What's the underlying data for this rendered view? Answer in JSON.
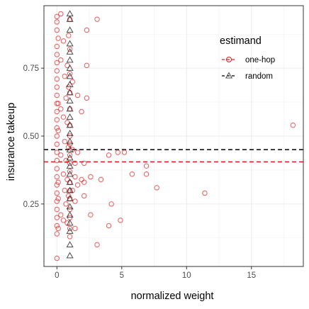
{
  "chart_data": {
    "type": "scatter",
    "xlabel": "normalized weight",
    "ylabel": "insurance takeup",
    "xlim": [
      -1.0,
      19.0
    ],
    "ylim": [
      0.02,
      0.98
    ],
    "x_ticks": [
      0,
      5,
      10,
      15
    ],
    "x_tick_labels": [
      "0",
      "5",
      "10",
      "15"
    ],
    "y_ticks": [
      0.25,
      0.5,
      0.75
    ],
    "y_tick_labels": [
      "0.25",
      "0.50",
      "0.75"
    ],
    "grid": true,
    "legend": {
      "title": "estimand",
      "position": "top-right-inside"
    },
    "reference_lines": [
      {
        "series": "one-hop",
        "y": 0.405,
        "color": "#e41a1c",
        "style": "dashed"
      },
      {
        "series": "random",
        "y": 0.45,
        "color": "#000000",
        "style": "dashed"
      }
    ],
    "series": [
      {
        "name": "one-hop",
        "marker": "circle",
        "color": "#e41a1c",
        "points": [
          [
            0.0,
            0.94
          ],
          [
            0.0,
            0.92
          ],
          [
            0.0,
            0.89
          ],
          [
            0.0,
            0.83
          ],
          [
            0.0,
            0.8
          ],
          [
            0.0,
            0.77
          ],
          [
            0.0,
            0.74
          ],
          [
            0.0,
            0.71
          ],
          [
            0.0,
            0.68
          ],
          [
            0.0,
            0.65
          ],
          [
            0.0,
            0.62
          ],
          [
            0.0,
            0.59
          ],
          [
            0.0,
            0.56
          ],
          [
            0.0,
            0.53
          ],
          [
            0.0,
            0.5
          ],
          [
            0.0,
            0.47
          ],
          [
            0.0,
            0.44
          ],
          [
            0.0,
            0.41
          ],
          [
            0.0,
            0.38
          ],
          [
            0.0,
            0.35
          ],
          [
            0.0,
            0.32
          ],
          [
            0.0,
            0.29
          ],
          [
            0.0,
            0.26
          ],
          [
            0.0,
            0.23
          ],
          [
            0.0,
            0.2
          ],
          [
            0.0,
            0.17
          ],
          [
            0.0,
            0.14
          ],
          [
            0.0,
            0.05
          ],
          [
            0.1,
            0.86
          ],
          [
            0.1,
            0.62
          ],
          [
            0.1,
            0.52
          ],
          [
            0.1,
            0.33
          ],
          [
            0.1,
            0.27
          ],
          [
            0.1,
            0.16
          ],
          [
            0.3,
            0.95
          ],
          [
            0.3,
            0.78
          ],
          [
            0.3,
            0.6
          ],
          [
            0.3,
            0.43
          ],
          [
            0.3,
            0.21
          ],
          [
            0.5,
            0.85
          ],
          [
            0.5,
            0.57
          ],
          [
            0.5,
            0.36
          ],
          [
            0.5,
            0.19
          ],
          [
            0.6,
            0.72
          ],
          [
            0.6,
            0.48
          ],
          [
            0.6,
            0.3
          ],
          [
            0.7,
            0.64
          ],
          [
            0.7,
            0.41
          ],
          [
            0.7,
            0.25
          ],
          [
            0.8,
            0.76
          ],
          [
            0.8,
            0.55
          ],
          [
            0.8,
            0.34
          ],
          [
            0.8,
            0.18
          ],
          [
            0.9,
            0.87
          ],
          [
            0.9,
            0.68
          ],
          [
            0.9,
            0.46
          ],
          [
            0.9,
            0.28
          ],
          [
            1.0,
            0.93
          ],
          [
            1.0,
            0.82
          ],
          [
            1.0,
            0.73
          ],
          [
            1.0,
            0.66
          ],
          [
            1.0,
            0.6
          ],
          [
            1.0,
            0.54
          ],
          [
            1.0,
            0.5
          ],
          [
            1.0,
            0.47
          ],
          [
            1.0,
            0.43
          ],
          [
            1.0,
            0.4
          ],
          [
            1.0,
            0.37
          ],
          [
            1.0,
            0.33
          ],
          [
            1.0,
            0.3
          ],
          [
            1.0,
            0.27
          ],
          [
            1.0,
            0.23
          ],
          [
            1.0,
            0.2
          ],
          [
            1.0,
            0.16
          ],
          [
            1.0,
            0.13
          ],
          [
            1.2,
            0.7
          ],
          [
            1.2,
            0.45
          ],
          [
            1.2,
            0.3
          ],
          [
            1.4,
            0.4
          ],
          [
            1.4,
            0.35
          ],
          [
            1.4,
            0.26
          ],
          [
            1.4,
            0.16
          ],
          [
            1.6,
            0.65
          ],
          [
            1.6,
            0.44
          ],
          [
            1.6,
            0.32
          ],
          [
            1.9,
            0.59
          ],
          [
            1.9,
            0.34
          ],
          [
            2.1,
            0.4
          ],
          [
            2.1,
            0.33
          ],
          [
            2.1,
            0.28
          ],
          [
            2.3,
            0.89
          ],
          [
            2.3,
            0.76
          ],
          [
            2.3,
            0.64
          ],
          [
            2.6,
            0.35
          ],
          [
            2.6,
            0.21
          ],
          [
            3.1,
            0.93
          ],
          [
            3.1,
            0.1
          ],
          [
            3.4,
            0.34
          ],
          [
            4.0,
            0.43
          ],
          [
            4.0,
            0.17
          ],
          [
            4.2,
            0.25
          ],
          [
            4.7,
            0.44
          ],
          [
            4.9,
            0.19
          ],
          [
            5.2,
            0.44
          ],
          [
            5.8,
            0.36
          ],
          [
            6.9,
            0.39
          ],
          [
            6.9,
            0.36
          ],
          [
            7.7,
            0.31
          ],
          [
            11.4,
            0.29
          ],
          [
            18.2,
            0.54
          ]
        ]
      },
      {
        "name": "random",
        "marker": "triangle",
        "color": "#000000",
        "points": [
          [
            1.0,
            0.95
          ],
          [
            1.0,
            0.93
          ],
          [
            1.0,
            0.89
          ],
          [
            1.0,
            0.84
          ],
          [
            1.0,
            0.81
          ],
          [
            1.0,
            0.78
          ],
          [
            1.0,
            0.75
          ],
          [
            1.0,
            0.72
          ],
          [
            1.0,
            0.69
          ],
          [
            1.0,
            0.66
          ],
          [
            1.0,
            0.63
          ],
          [
            1.0,
            0.6
          ],
          [
            1.0,
            0.57
          ],
          [
            1.0,
            0.54
          ],
          [
            1.0,
            0.51
          ],
          [
            1.0,
            0.48
          ],
          [
            1.0,
            0.45
          ],
          [
            1.0,
            0.42
          ],
          [
            1.0,
            0.39
          ],
          [
            1.0,
            0.36
          ],
          [
            1.0,
            0.33
          ],
          [
            1.0,
            0.3
          ],
          [
            1.0,
            0.27
          ],
          [
            1.0,
            0.24
          ],
          [
            1.0,
            0.21
          ],
          [
            1.0,
            0.18
          ],
          [
            1.0,
            0.15
          ],
          [
            1.0,
            0.1
          ],
          [
            1.0,
            0.06
          ]
        ]
      }
    ]
  }
}
